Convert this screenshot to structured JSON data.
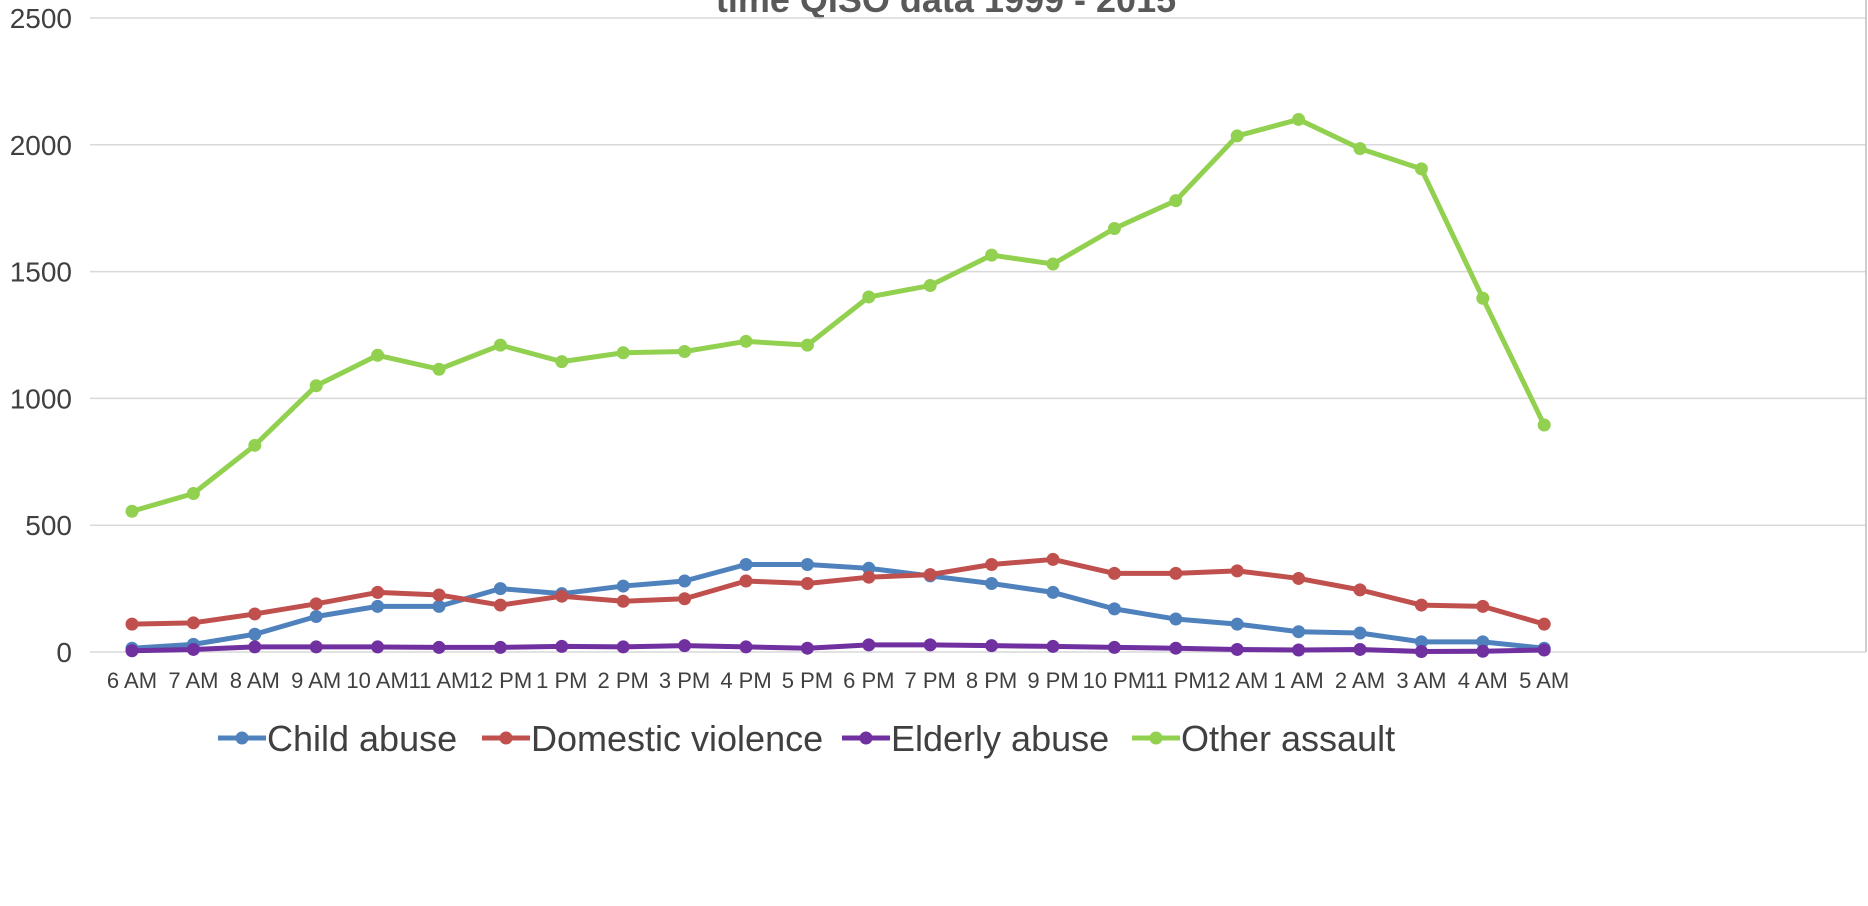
{
  "chart_data": {
    "type": "line",
    "title": "time  QISO data 1999 - 2015",
    "xlabel": "",
    "ylabel": "",
    "ylim": [
      0,
      2500
    ],
    "yticks": [
      0,
      500,
      1000,
      1500,
      2000,
      2500
    ],
    "grid": true,
    "legend_position": "bottom",
    "categories": [
      "6 AM",
      "7 AM",
      "8 AM",
      "9 AM",
      "10 AM",
      "11 AM",
      "12 PM",
      "1 PM",
      "2 PM",
      "3 PM",
      "4 PM",
      "5 PM",
      "6 PM",
      "7 PM",
      "8 PM",
      "9 PM",
      "10 PM",
      "11 PM",
      "12 AM",
      "1 AM",
      "2 AM",
      "3 AM",
      "4 AM",
      "5 AM"
    ],
    "series": [
      {
        "name": "Child abuse",
        "color": "#4f81bd",
        "values": [
          15,
          30,
          70,
          140,
          180,
          180,
          250,
          230,
          260,
          280,
          345,
          345,
          330,
          300,
          270,
          235,
          170,
          130,
          110,
          80,
          75,
          40,
          40,
          15
        ]
      },
      {
        "name": "Domestic violence",
        "color": "#c0504d",
        "values": [
          110,
          115,
          150,
          190,
          235,
          225,
          185,
          220,
          200,
          210,
          280,
          270,
          295,
          305,
          345,
          365,
          310,
          310,
          320,
          290,
          245,
          185,
          180,
          110
        ]
      },
      {
        "name": "Elderly abuse",
        "color": "#7030a0",
        "values": [
          5,
          10,
          20,
          20,
          20,
          18,
          18,
          22,
          20,
          25,
          20,
          15,
          28,
          28,
          25,
          22,
          18,
          15,
          10,
          8,
          10,
          2,
          3,
          8
        ]
      },
      {
        "name": "Other assault",
        "color": "#92d050",
        "values": [
          555,
          625,
          815,
          1050,
          1170,
          1115,
          1210,
          1145,
          1180,
          1185,
          1225,
          1210,
          1400,
          1445,
          1565,
          1530,
          1670,
          1780,
          2035,
          2100,
          1985,
          1905,
          1395,
          895
        ]
      }
    ]
  }
}
